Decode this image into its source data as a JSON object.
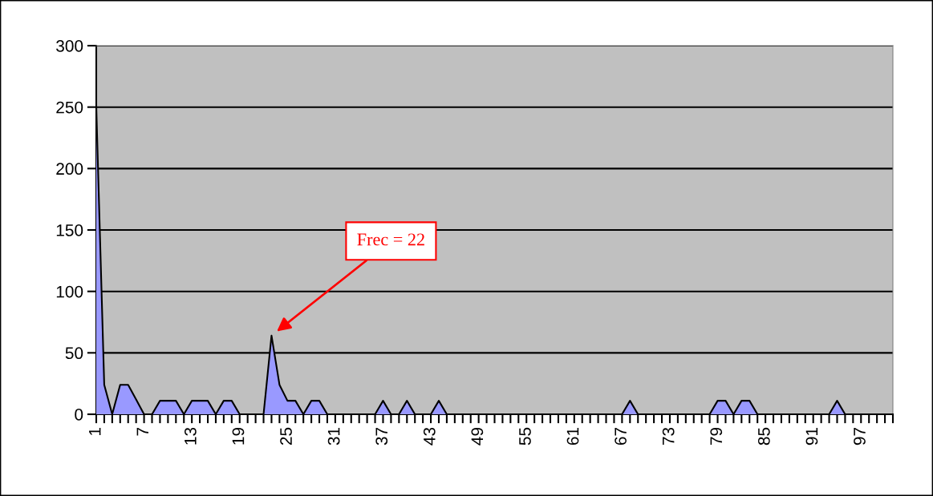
{
  "chart_data": {
    "type": "area",
    "categories": [
      "1",
      null,
      null,
      null,
      null,
      null,
      "7",
      null,
      null,
      null,
      null,
      null,
      "13",
      null,
      null,
      null,
      null,
      null,
      "19",
      null,
      null,
      null,
      null,
      null,
      "25",
      null,
      null,
      null,
      null,
      null,
      "31",
      null,
      null,
      null,
      null,
      null,
      "37",
      null,
      null,
      null,
      null,
      null,
      "43",
      null,
      null,
      null,
      null,
      null,
      "49",
      null,
      null,
      null,
      null,
      null,
      "55",
      null,
      null,
      null,
      null,
      null,
      "61",
      null,
      null,
      null,
      null,
      null,
      "67",
      null,
      null,
      null,
      null,
      null,
      "73",
      null,
      null,
      null,
      null,
      null,
      "79",
      null,
      null,
      null,
      null,
      null,
      "85",
      null,
      null,
      null,
      null,
      null,
      "91",
      null,
      null,
      null,
      null,
      null,
      "97",
      null,
      null,
      null,
      null
    ],
    "series": [
      {
        "color": "#9999ff",
        "values": [
          250,
          24,
          0,
          24,
          24,
          12,
          0,
          0,
          11,
          11,
          11,
          0,
          11,
          11,
          11,
          0,
          11,
          11,
          0,
          0,
          0,
          0,
          64,
          24,
          11,
          11,
          0,
          11,
          11,
          0,
          0,
          0,
          0,
          0,
          0,
          0,
          11,
          0,
          0,
          11,
          0,
          0,
          0,
          11,
          0,
          0,
          0,
          0,
          0,
          0,
          0,
          0,
          0,
          0,
          0,
          0,
          0,
          0,
          0,
          0,
          0,
          0,
          0,
          0,
          0,
          0,
          0,
          11,
          0,
          0,
          0,
          0,
          0,
          0,
          0,
          0,
          0,
          0,
          11,
          11,
          0,
          11,
          11,
          0,
          0,
          0,
          0,
          0,
          0,
          0,
          0,
          0,
          0,
          11,
          0,
          0,
          0,
          0,
          0,
          0,
          0
        ]
      }
    ],
    "ylim": [
      0,
      300
    ],
    "yticks": [
      0,
      50,
      100,
      150,
      200,
      250,
      300
    ],
    "grid": "y",
    "annotations": [
      "Frec = 22"
    ]
  }
}
